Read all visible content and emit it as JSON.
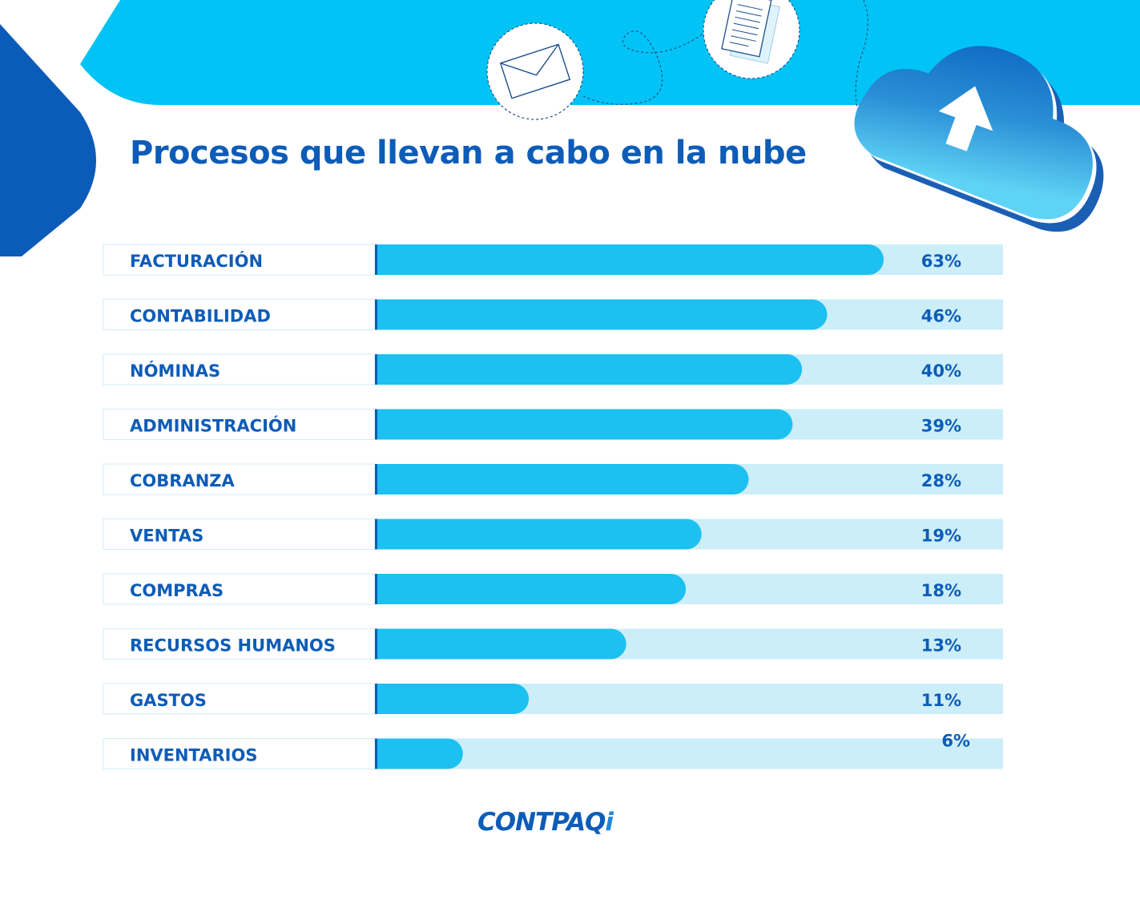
{
  "colors": {
    "banner": "#02c3f5",
    "banner_dark": "#0b5bb8",
    "bar_fill": "#1cc0f1",
    "bar_track": "#cbeef9",
    "label_text": "#0d5cb8",
    "label_box_border": "#d8eef6"
  },
  "icons": [
    "envelope-icon",
    "document-icon",
    "cloud-upload-icon"
  ],
  "logo": {
    "main": "CONTPAQ",
    "suffix": "i"
  },
  "chart_data": {
    "type": "bar",
    "orientation": "horizontal",
    "title": "Procesos que llevan a cabo en la nube",
    "categories": [
      "FACTURACIÓN",
      "CONTABILIDAD",
      "NÓMINAS",
      "ADMINISTRACIÓN",
      "COBRANZA",
      "VENTAS",
      "COMPRAS",
      "RECURSOS HUMANOS",
      "GASTOS",
      "INVENTARIOS"
    ],
    "values": [
      63,
      46,
      40,
      39,
      28,
      19,
      18,
      13,
      11,
      6
    ],
    "value_labels": [
      "63%",
      "46%",
      "40%",
      "39%",
      "28%",
      "19%",
      "18%",
      "13%",
      "11%",
      "6%"
    ],
    "fill_fraction": [
      0.81,
      0.72,
      0.68,
      0.665,
      0.595,
      0.52,
      0.495,
      0.4,
      0.245,
      0.14
    ],
    "grid": false,
    "legend": "none"
  }
}
